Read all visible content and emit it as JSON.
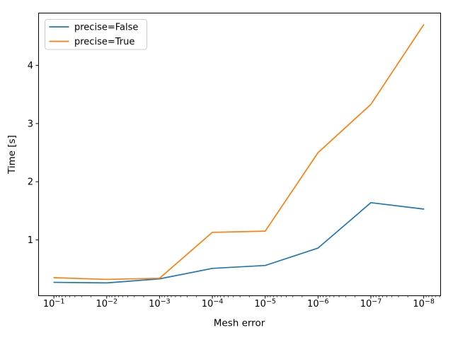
{
  "chart_data": {
    "type": "line",
    "title": "",
    "xlabel": "Mesh error",
    "ylabel": "Time [s]",
    "x_scale": "log-reversed",
    "grid": false,
    "background": "#ffffff",
    "axis_color": "#000000",
    "text_color": "#000000",
    "x_tick_labels": [
      "10⁻¹",
      "10⁻²",
      "10⁻³",
      "10⁻⁴",
      "10⁻⁵",
      "10⁻⁶",
      "10⁻⁷",
      "10⁻⁸"
    ],
    "x_tick_exponents": [
      -1,
      -2,
      -3,
      -4,
      -5,
      -6,
      -7,
      -8
    ],
    "x_values": [
      0.1,
      0.01,
      0.001,
      0.0001,
      1e-05,
      1e-06,
      1e-07,
      1e-08
    ],
    "y_tick_labels": [
      "1",
      "2",
      "3",
      "4"
    ],
    "y_ticks": [
      1,
      2,
      3,
      4
    ],
    "xlim_exponents": [
      -0.71,
      -8.32
    ],
    "ylim": [
      0.04,
      4.9
    ],
    "legend": {
      "position": "upper-left",
      "entries": [
        "precise=False",
        "precise=True"
      ],
      "border_color": "#cccccc",
      "background": "#ffffff"
    },
    "series": [
      {
        "name": "precise=False",
        "color": "#1f77b4",
        "values": [
          0.27,
          0.26,
          0.33,
          0.51,
          0.56,
          0.86,
          1.64,
          1.53
        ]
      },
      {
        "name": "precise=True",
        "color": "#ff7f0e",
        "values": [
          0.35,
          0.32,
          0.34,
          1.13,
          1.15,
          2.5,
          3.33,
          4.7
        ]
      }
    ]
  }
}
